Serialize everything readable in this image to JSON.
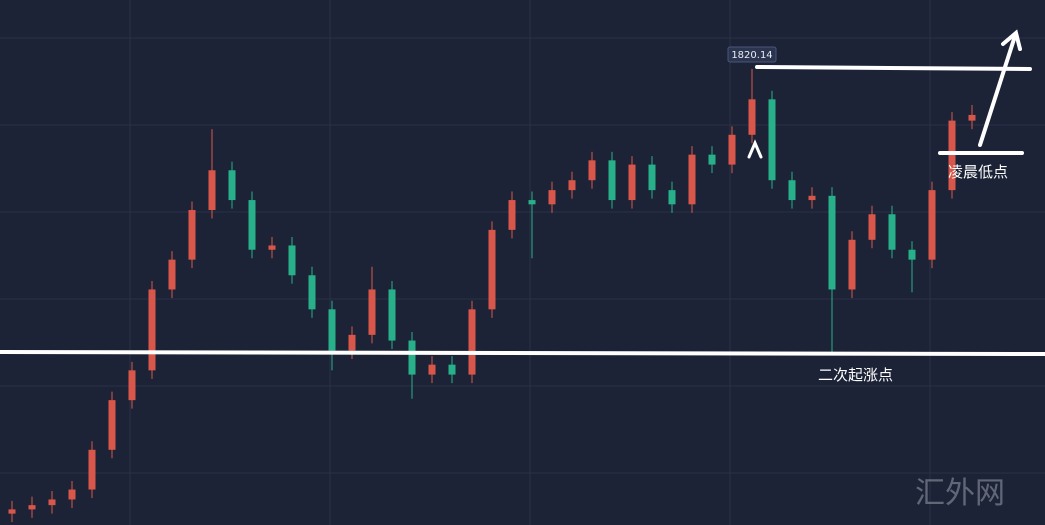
{
  "chart_data": {
    "type": "candlestick",
    "ylim": [
      1788,
      1825
    ],
    "open": [
      1788.8,
      1789.1,
      1789.4,
      1789.8,
      1790.5,
      1793.3,
      1796.8,
      1798.9,
      1804.6,
      1806.7,
      1810.2,
      1813.0,
      1810.9,
      1807.4,
      1807.7,
      1805.6,
      1803.2,
      1800.3,
      1801.4,
      1804.6,
      1801.0,
      1798.6,
      1799.3,
      1798.6,
      1803.2,
      1808.8,
      1810.9,
      1810.6,
      1811.6,
      1812.3,
      1813.7,
      1810.9,
      1813.4,
      1811.6,
      1810.6,
      1814.1,
      1813.4,
      1815.5,
      1818.0,
      1812.3,
      1810.9,
      1811.2,
      1804.6,
      1808.1,
      1809.9,
      1807.4,
      1806.7,
      1811.6,
      1816.5
    ],
    "high": [
      1789.7,
      1790.0,
      1790.4,
      1791.1,
      1793.9,
      1797.4,
      1799.5,
      1805.2,
      1807.3,
      1810.8,
      1815.9,
      1813.6,
      1811.5,
      1808.3,
      1808.3,
      1806.2,
      1803.8,
      1802.0,
      1806.2,
      1805.2,
      1801.6,
      1799.9,
      1799.9,
      1803.8,
      1809.4,
      1811.5,
      1811.5,
      1812.2,
      1812.9,
      1814.3,
      1814.3,
      1814.0,
      1814.0,
      1812.2,
      1814.7,
      1814.7,
      1816.1,
      1820.14,
      1818.6,
      1812.9,
      1811.8,
      1811.8,
      1808.7,
      1810.5,
      1810.5,
      1808.0,
      1812.2,
      1817.1,
      1817.6
    ],
    "low": [
      1788.2,
      1788.5,
      1788.8,
      1789.2,
      1789.9,
      1792.7,
      1796.2,
      1798.3,
      1804.0,
      1806.1,
      1809.6,
      1810.3,
      1806.8,
      1806.8,
      1805.0,
      1802.6,
      1798.9,
      1799.7,
      1800.8,
      1800.4,
      1796.9,
      1798.0,
      1798.0,
      1798.0,
      1802.6,
      1808.2,
      1806.8,
      1810.0,
      1811.0,
      1811.7,
      1810.3,
      1810.3,
      1811.0,
      1810.0,
      1810.0,
      1812.8,
      1812.8,
      1814.9,
      1811.7,
      1810.3,
      1810.3,
      1800.0,
      1804.0,
      1807.5,
      1806.8,
      1804.4,
      1806.1,
      1811.0,
      1815.9
    ],
    "close": [
      1789.1,
      1789.4,
      1789.8,
      1790.5,
      1793.3,
      1796.8,
      1798.9,
      1804.6,
      1806.7,
      1810.2,
      1813.0,
      1810.9,
      1807.4,
      1807.7,
      1805.6,
      1803.2,
      1800.3,
      1801.4,
      1804.6,
      1801.0,
      1798.6,
      1799.3,
      1798.6,
      1803.2,
      1808.8,
      1810.9,
      1810.6,
      1811.6,
      1812.3,
      1813.7,
      1810.9,
      1813.4,
      1811.6,
      1810.6,
      1814.1,
      1813.4,
      1815.5,
      1818.0,
      1812.3,
      1810.9,
      1811.2,
      1804.6,
      1808.1,
      1809.9,
      1807.4,
      1806.7,
      1811.6,
      1816.5,
      1816.9
    ],
    "up_color": "#d9574a",
    "down_color": "#27b08a",
    "annotations": [
      "二次起涨点",
      "凌晨低点"
    ],
    "watermark": "汇外网"
  }
}
